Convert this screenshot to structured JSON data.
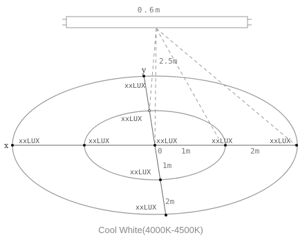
{
  "fixture": {
    "width_label": "0.6m",
    "height_label": "2.5m"
  },
  "axes": {
    "x": "x",
    "y": "y"
  },
  "origin_label": "0",
  "distance_labels": {
    "one_m_x": "1m",
    "two_m_x": "2m",
    "one_m_y": "1m",
    "two_m_y": "2m"
  },
  "lux_labels": {
    "center": "xxLUX",
    "inner_right": "xxLUX",
    "outer_right": "xxLUX",
    "inner_left": "xxLUX",
    "outer_left": "xxLUX",
    "inner_top": "xxLUX",
    "outer_top": "xxLUX",
    "inner_bottom": "xxLUX",
    "outer_bottom": "xxLUX"
  },
  "caption": "Cool White(4000K-4500K)",
  "colors": {
    "line": "#999999",
    "axis": "#666666",
    "dashed": "#999999",
    "dot": "#111111"
  }
}
